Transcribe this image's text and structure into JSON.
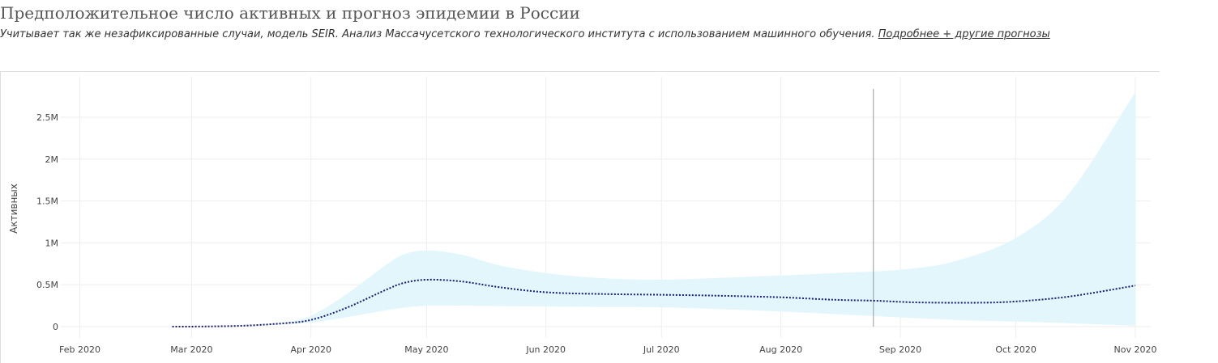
{
  "header": {
    "title": "Предположительное число активных и прогноз эпидемии в России",
    "subtitle": "Учитывает так же незафиксированные случаи, модель SEIR. Анализ Массачусетского технологического института с использованием машинного обучения.",
    "link_label": "Подробнее + другие прогнозы"
  },
  "chart_data": {
    "type": "area",
    "ylabel": "Активных",
    "x_ticks": [
      "Feb 2020",
      "Mar 2020",
      "Apr 2020",
      "May 2020",
      "Jun 2020",
      "Jul 2020",
      "Aug 2020",
      "Sep 2020",
      "Oct 2020",
      "Nov 2020"
    ],
    "y_ticks": [
      "0",
      "0.5M",
      "1M",
      "1.5M",
      "2M",
      "2.5M"
    ],
    "ylim": [
      0,
      2900000
    ],
    "xlim": [
      "2020-01-26",
      "2020-11-05"
    ],
    "grid": true,
    "marker_line_date": "2020-08-25",
    "series": [
      {
        "style": "dotted-line",
        "color": "#1a1a6e",
        "x": [
          "2020-02-25",
          "2020-03-05",
          "2020-03-15",
          "2020-03-25",
          "2020-04-01",
          "2020-04-10",
          "2020-04-20",
          "2020-04-25",
          "2020-05-01",
          "2020-05-10",
          "2020-05-20",
          "2020-06-01",
          "2020-06-15",
          "2020-07-01",
          "2020-07-15",
          "2020-08-01",
          "2020-08-15",
          "2020-08-25",
          "2020-09-05",
          "2020-09-20",
          "2020-10-01",
          "2020-10-15",
          "2020-11-01"
        ],
        "y": [
          0,
          2000,
          12000,
          40000,
          80000,
          220000,
          430000,
          520000,
          560000,
          540000,
          470000,
          410000,
          390000,
          380000,
          370000,
          350000,
          320000,
          310000,
          290000,
          285000,
          300000,
          360000,
          490000
        ]
      },
      {
        "style": "band",
        "color": "#e3f6fc",
        "x": [
          "2020-02-25",
          "2020-03-15",
          "2020-03-25",
          "2020-04-01",
          "2020-04-10",
          "2020-04-20",
          "2020-04-25",
          "2020-05-01",
          "2020-05-10",
          "2020-05-20",
          "2020-06-01",
          "2020-06-15",
          "2020-07-01",
          "2020-07-15",
          "2020-08-01",
          "2020-08-15",
          "2020-09-01",
          "2020-09-15",
          "2020-10-01",
          "2020-10-15",
          "2020-11-01"
        ],
        "upper": [
          0,
          15000,
          50000,
          130000,
          380000,
          720000,
          860000,
          910000,
          860000,
          730000,
          640000,
          580000,
          560000,
          580000,
          610000,
          640000,
          680000,
          780000,
          1060000,
          1600000,
          2800000
        ],
        "lower": [
          0,
          10000,
          30000,
          50000,
          110000,
          190000,
          225000,
          250000,
          250000,
          245000,
          240000,
          235000,
          230000,
          210000,
          180000,
          150000,
          110000,
          80000,
          60000,
          40000,
          10000
        ]
      }
    ]
  }
}
